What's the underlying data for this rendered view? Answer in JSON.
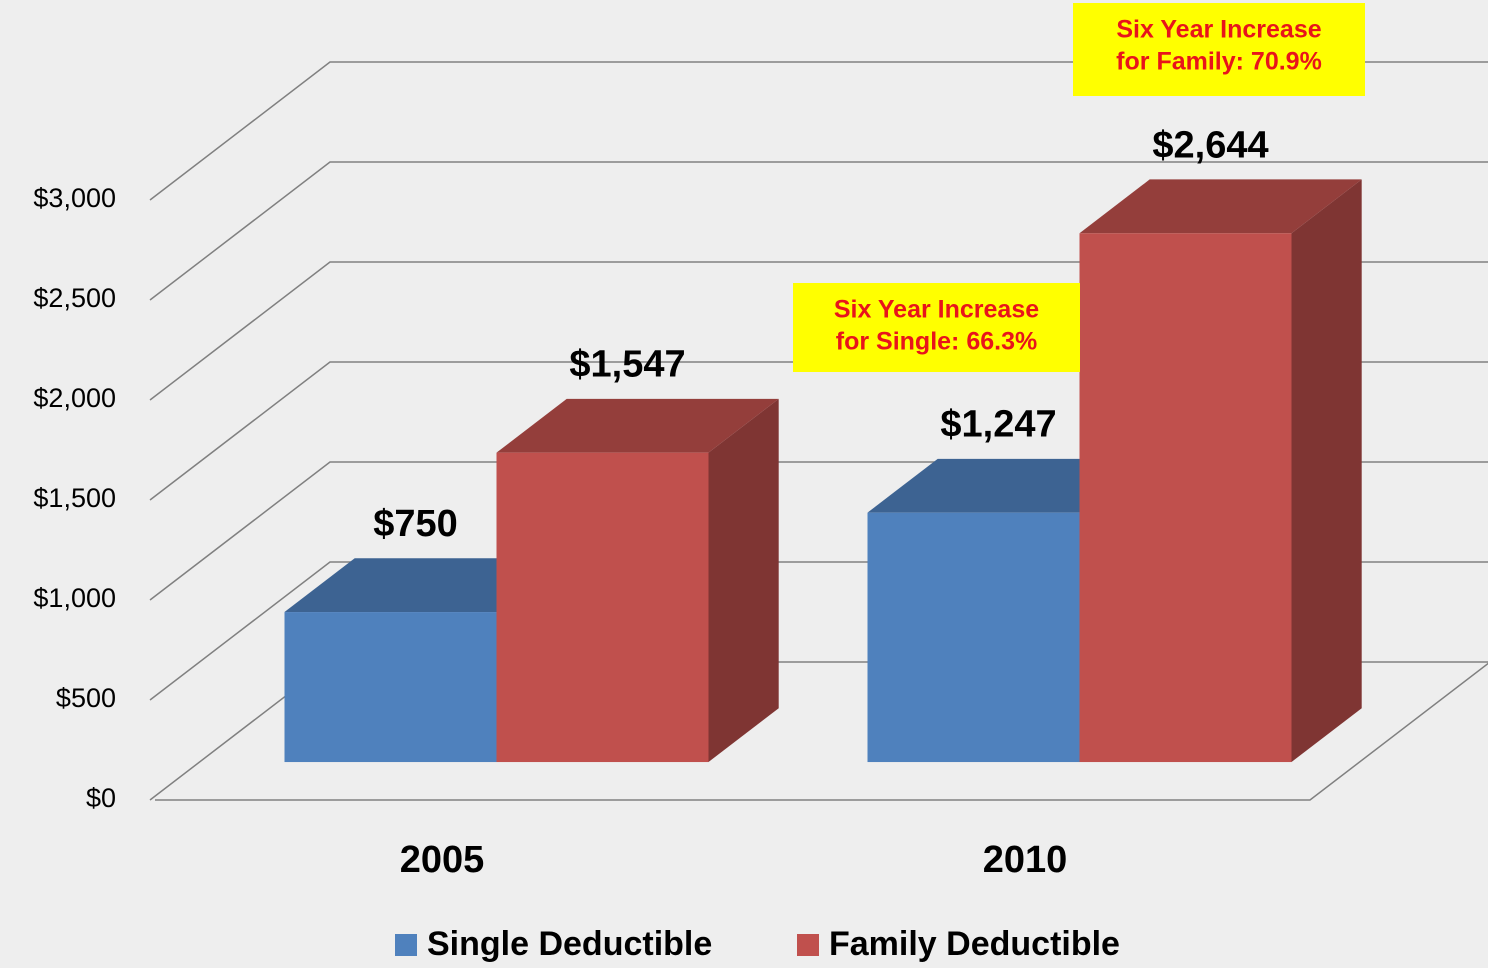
{
  "chart_data": {
    "type": "bar3d",
    "categories": [
      "2005",
      "2010"
    ],
    "series": [
      {
        "name": "Single Deductible",
        "color": "#4f81bd",
        "values": [
          750,
          1247
        ],
        "value_labels": [
          "$750",
          "$1,247"
        ]
      },
      {
        "name": "Family Deductible",
        "color": "#c0504d",
        "values": [
          1547,
          2644
        ],
        "value_labels": [
          "$1,547",
          "$2,644"
        ]
      }
    ],
    "ylim": [
      0,
      3000
    ],
    "yticks": [
      {
        "value": 0,
        "label": "$0"
      },
      {
        "value": 500,
        "label": "$500"
      },
      {
        "value": 1000,
        "label": "$1,000"
      },
      {
        "value": 1500,
        "label": "$1,500"
      },
      {
        "value": 2000,
        "label": "$2,000"
      },
      {
        "value": 2500,
        "label": "$2,500"
      },
      {
        "value": 3000,
        "label": "$3,000"
      }
    ],
    "grid": true,
    "legend": "bottom",
    "annotations": [
      {
        "lines": [
          "Six Year Increase",
          "for Single:  66.3%"
        ],
        "color": "#ffff00"
      },
      {
        "lines": [
          "Six Year Increase",
          "for Family:  70.9%"
        ],
        "color": "#ffff00"
      }
    ]
  }
}
